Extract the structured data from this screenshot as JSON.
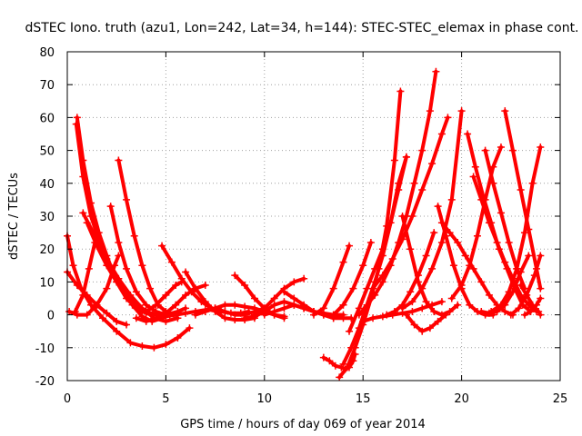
{
  "chart_data": {
    "type": "scatter",
    "title": "dSTEC Iono. truth (azu1, Lon=242, Lat=34, h=144): STEC-STEC_elemax in phase cont.",
    "xlabel": "GPS time / hours of day 069 of year 2014",
    "ylabel": "dSTEC  / TECUs",
    "xlim": [
      0,
      25
    ],
    "ylim": [
      -20,
      80
    ],
    "xticks": [
      "0",
      "5",
      "10",
      "15",
      "20",
      "25"
    ],
    "yticks": [
      "-20",
      "-10",
      "0",
      "10",
      "20",
      "30",
      "40",
      "50",
      "60",
      "70",
      "80"
    ],
    "grid": true,
    "marker": "plus",
    "color": "#ff0000",
    "series": [
      {
        "x": [
          0.5,
          0.8,
          1.2,
          1.6,
          2.0,
          2.5,
          3.0,
          3.5,
          4.0,
          4.3
        ],
        "y": [
          60,
          47,
          34,
          25,
          18,
          10,
          5,
          2,
          0.5,
          0
        ]
      },
      {
        "x": [
          0.45,
          0.8,
          1.2,
          1.7,
          2.2,
          2.8,
          3.3,
          3.8,
          4.3,
          4.8,
          5.2
        ],
        "y": [
          58,
          42,
          30,
          21,
          14,
          8,
          3,
          -0.5,
          -2,
          -1,
          0
        ]
      },
      {
        "x": [
          0.0,
          0.3,
          0.7,
          1.2,
          1.8,
          2.5,
          3.2,
          3.8,
          4.4,
          5.0,
          5.6,
          6.2
        ],
        "y": [
          24,
          15,
          8,
          3,
          -1,
          -5,
          -8.5,
          -9.5,
          -10,
          -9,
          -7,
          -4
        ]
      },
      {
        "x": [
          0.0,
          0.5,
          1.0,
          1.5,
          2.0,
          2.5,
          3.0
        ],
        "y": [
          13,
          9,
          6,
          3,
          0.5,
          -2,
          -3
        ]
      },
      {
        "x": [
          0.1,
          0.5,
          1.0,
          1.5,
          2.0,
          2.4,
          2.6
        ],
        "y": [
          1,
          0,
          0,
          3,
          8,
          15,
          18
        ]
      },
      {
        "x": [
          0.4,
          0.8,
          1.1,
          1.4
        ],
        "y": [
          1,
          6,
          14,
          22
        ]
      },
      {
        "x": [
          0.8,
          1.4,
          2.0,
          2.6,
          3.2,
          3.8,
          4.4,
          5.0,
          5.6
        ],
        "y": [
          31,
          24,
          17,
          11,
          6,
          2,
          -1,
          -2,
          -1
        ]
      },
      {
        "x": [
          1.0,
          1.5,
          2.0,
          2.5,
          3.0,
          3.5,
          4.0,
          4.5,
          5.0,
          5.5,
          6.0,
          6.5,
          7.0,
          7.5
        ],
        "y": [
          28,
          21,
          15,
          10,
          6,
          3,
          1,
          0,
          -0.5,
          0,
          0.5,
          1,
          1.5,
          2
        ]
      },
      {
        "x": [
          2.2,
          2.6,
          3.0,
          3.5,
          4.0,
          4.5,
          5.0,
          5.6,
          6.0
        ],
        "y": [
          33,
          22,
          14,
          7,
          3,
          1,
          0,
          1,
          2
        ]
      },
      {
        "x": [
          2.6,
          3.0,
          3.4,
          3.8,
          4.2,
          4.6,
          5.0,
          5.4
        ],
        "y": [
          47,
          35,
          24,
          15,
          8,
          3,
          1,
          0
        ]
      },
      {
        "x": [
          3.5,
          4.0,
          4.5,
          5.0,
          5.5,
          6.0,
          6.5,
          7.0
        ],
        "y": [
          -1,
          -2,
          -1,
          0.5,
          3,
          6,
          8,
          9
        ]
      },
      {
        "x": [
          4.0,
          4.5,
          5.0,
          5.5,
          5.8
        ],
        "y": [
          1,
          3,
          6,
          9,
          10
        ]
      },
      {
        "x": [
          4.8,
          5.3,
          5.8,
          6.3,
          6.8,
          7.3,
          7.8,
          8.3,
          8.8,
          9.2
        ],
        "y": [
          21,
          16,
          11,
          7,
          4,
          2,
          1,
          0.5,
          0.5,
          1
        ]
      },
      {
        "x": [
          6.0,
          6.5,
          7.0,
          7.5,
          8.0,
          8.5,
          9.0,
          9.5
        ],
        "y": [
          13,
          8,
          4,
          1,
          -1,
          -1.5,
          -1.5,
          -1
        ]
      },
      {
        "x": [
          6.5,
          7.0,
          7.5,
          8.0,
          8.5,
          9.0,
          9.5,
          10.0,
          10.5,
          11.0
        ],
        "y": [
          0,
          1,
          2,
          3,
          3,
          2.5,
          2,
          1,
          0,
          -0.5
        ]
      },
      {
        "x": [
          7.5,
          8.0,
          8.5,
          9.0,
          9.5,
          10.0
        ],
        "y": [
          2,
          1,
          0,
          0,
          1,
          2
        ]
      },
      {
        "x": [
          8.5,
          9.0,
          9.5,
          10.0,
          10.5,
          11.0
        ],
        "y": [
          12,
          9,
          5,
          2,
          0,
          -1
        ]
      },
      {
        "x": [
          9.0,
          9.5,
          10.0,
          10.5,
          11.0,
          11.5,
          12.0
        ],
        "y": [
          -1,
          -0.5,
          1,
          3,
          4,
          3,
          2
        ]
      },
      {
        "x": [
          9.5,
          10.0,
          10.5,
          11.0,
          11.5,
          12.0
        ],
        "y": [
          0,
          2,
          5,
          8,
          10,
          11
        ]
      },
      {
        "x": [
          10.0,
          10.5,
          11.0,
          11.5,
          12.0,
          12.5,
          13.0,
          13.5,
          14.0
        ],
        "y": [
          0,
          1,
          2,
          3,
          2,
          1,
          0.5,
          0,
          0
        ]
      },
      {
        "x": [
          11.0,
          11.5,
          12.0,
          12.5,
          13.0,
          13.5,
          14.0,
          14.4
        ],
        "y": [
          7,
          5,
          3,
          1,
          0,
          -1,
          -1,
          -1
        ]
      },
      {
        "x": [
          11.5,
          12.0,
          12.5,
          13.0,
          13.5
        ],
        "y": [
          3,
          2,
          1,
          0,
          -1
        ]
      },
      {
        "x": [
          12.5,
          13.0,
          13.5,
          14.0,
          14.3
        ],
        "y": [
          0,
          2,
          8,
          16,
          21
        ]
      },
      {
        "x": [
          13.0,
          13.3,
          13.6,
          13.9,
          14.1,
          14.3,
          14.5,
          14.6
        ],
        "y": [
          -13,
          -14,
          -15.5,
          -16,
          -16.5,
          -16,
          -14,
          -12
        ]
      },
      {
        "x": [
          13.5,
          14.0,
          14.5,
          15.0,
          15.4
        ],
        "y": [
          0,
          3,
          8,
          15,
          22
        ]
      },
      {
        "x": [
          13.8,
          14.2,
          14.6,
          15.0,
          15.4,
          15.8,
          16.2,
          16.6,
          16.9
        ],
        "y": [
          -19,
          -16,
          -10,
          -3,
          5,
          14,
          27,
          47,
          68
        ]
      },
      {
        "x": [
          14.0,
          14.4,
          14.8,
          15.2,
          15.6,
          16.0,
          16.4,
          16.8,
          17.2
        ],
        "y": [
          -15,
          -10,
          -4,
          3,
          10,
          18,
          28,
          40,
          48
        ]
      },
      {
        "x": [
          14.3,
          14.8,
          15.2,
          15.6,
          16.0,
          16.4,
          16.8,
          17.2
        ],
        "y": [
          -5,
          2,
          8,
          14,
          20,
          28,
          38,
          48
        ]
      },
      {
        "x": [
          14.8,
          15.2,
          15.6,
          16.0,
          16.4,
          16.8,
          17.2,
          17.6,
          18.0,
          18.4,
          18.7
        ],
        "y": [
          0,
          3,
          6,
          10,
          15,
          22,
          30,
          40,
          50,
          62,
          74
        ]
      },
      {
        "x": [
          15.0,
          15.5,
          16.0,
          16.5,
          17.0,
          17.5,
          18.0,
          18.5,
          19.0
        ],
        "y": [
          -2,
          -1,
          -0.5,
          0,
          0.5,
          1,
          2,
          3,
          4
        ]
      },
      {
        "x": [
          15.5,
          16.0,
          16.5,
          17.0,
          17.5,
          18.0,
          18.5,
          19.0,
          19.3
        ],
        "y": [
          8,
          12,
          17,
          23,
          30,
          38,
          46,
          55,
          60
        ]
      },
      {
        "x": [
          16.2,
          16.6,
          17.0,
          17.4,
          17.8,
          18.2,
          18.6
        ],
        "y": [
          0,
          1,
          3,
          7,
          12,
          18,
          25
        ]
      },
      {
        "x": [
          17.0,
          17.5,
          18.0,
          18.5,
          19.0,
          19.5,
          20.0
        ],
        "y": [
          2,
          4,
          8,
          14,
          22,
          35,
          62
        ]
      },
      {
        "x": [
          17.0,
          17.4,
          17.8,
          18.2,
          18.6,
          19.0,
          19.4,
          19.8
        ],
        "y": [
          30,
          20,
          10,
          4,
          1,
          0,
          1,
          3
        ]
      },
      {
        "x": [
          17.2,
          17.6,
          18.0,
          18.4,
          18.8,
          19.2
        ],
        "y": [
          0,
          -3,
          -5,
          -4,
          -2,
          0
        ]
      },
      {
        "x": [
          18.8,
          19.2,
          19.6,
          20.0,
          20.4,
          20.8,
          21.2,
          21.6
        ],
        "y": [
          33,
          24,
          15,
          8,
          3,
          1,
          0,
          0
        ]
      },
      {
        "x": [
          19.0,
          19.4,
          19.8,
          20.2,
          20.6,
          21.0,
          21.4,
          21.8,
          22.2,
          22.6
        ],
        "y": [
          28,
          25,
          22,
          18,
          14,
          10,
          6,
          3,
          1,
          0
        ]
      },
      {
        "x": [
          19.5,
          20.0,
          20.4,
          20.8,
          21.2,
          21.6,
          22.0
        ],
        "y": [
          5,
          9,
          15,
          24,
          35,
          45,
          51
        ]
      },
      {
        "x": [
          20.3,
          20.7,
          21.1,
          21.5,
          21.9,
          22.3,
          22.7,
          23.1,
          23.5
        ],
        "y": [
          55,
          45,
          36,
          28,
          20,
          14,
          8,
          3,
          1
        ]
      },
      {
        "x": [
          20.6,
          21.0,
          21.4,
          21.8,
          22.2,
          22.6,
          23.0,
          23.4,
          23.8
        ],
        "y": [
          42,
          35,
          28,
          22,
          16,
          11,
          6,
          3,
          1
        ]
      },
      {
        "x": [
          21.0,
          21.4,
          21.8,
          22.2,
          22.6,
          23.0,
          23.4
        ],
        "y": [
          1,
          0.5,
          1,
          3,
          7,
          13,
          18
        ]
      },
      {
        "x": [
          21.2,
          21.6,
          22.0,
          22.4,
          22.8,
          23.2
        ],
        "y": [
          50,
          40,
          31,
          22,
          14,
          8
        ]
      },
      {
        "x": [
          21.5,
          22.0,
          22.4,
          22.8,
          23.2,
          23.6,
          24.0
        ],
        "y": [
          1,
          3,
          7,
          14,
          25,
          40,
          51
        ]
      },
      {
        "x": [
          22.2,
          22.6,
          23.0,
          23.4,
          23.8,
          24.0
        ],
        "y": [
          62,
          50,
          38,
          26,
          14,
          8
        ]
      },
      {
        "x": [
          22.5,
          22.9,
          23.3,
          23.7,
          24.0
        ],
        "y": [
          0,
          2,
          6,
          12,
          18
        ]
      },
      {
        "x": [
          23.0,
          23.3,
          23.6,
          23.9,
          24.0
        ],
        "y": [
          9,
          6,
          3,
          1,
          0
        ]
      },
      {
        "x": [
          23.2,
          23.5,
          23.8,
          24.0
        ],
        "y": [
          0,
          1,
          3,
          5
        ]
      }
    ]
  }
}
